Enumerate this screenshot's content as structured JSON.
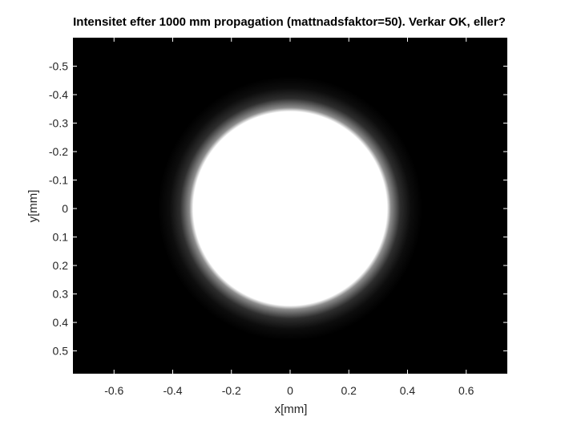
{
  "chart_data": {
    "type": "heatmap",
    "title": "Intensitet efter 1000 mm propagation (mattnadsfaktor=50). Verkar OK, eller?",
    "xlabel": "x[mm]",
    "ylabel": "y[mm]",
    "xlim": [
      -0.74,
      0.74
    ],
    "ylim": [
      -0.6,
      0.58
    ],
    "y_direction": "reverse",
    "x_ticks": [
      -0.6,
      -0.4,
      -0.2,
      0,
      0.2,
      0.4,
      0.6
    ],
    "y_ticks": [
      -0.5,
      -0.4,
      -0.3,
      -0.2,
      -0.1,
      0,
      0.1,
      0.2,
      0.3,
      0.4,
      0.5
    ],
    "x_tick_labels": [
      "-0.6",
      "-0.4",
      "-0.2",
      "0",
      "0.2",
      "0.4",
      "0.6"
    ],
    "y_tick_labels": [
      "-0.5",
      "-0.4",
      "-0.3",
      "-0.2",
      "-0.1",
      "0",
      "0.1",
      "0.2",
      "0.3",
      "0.4",
      "0.5"
    ],
    "colormap": "gray",
    "background_color": "#000000",
    "beam": {
      "center": [
        0,
        0
      ],
      "radius": 0.33,
      "edge_width": 0.12,
      "peak_intensity": 1.0
    },
    "grid": false
  }
}
